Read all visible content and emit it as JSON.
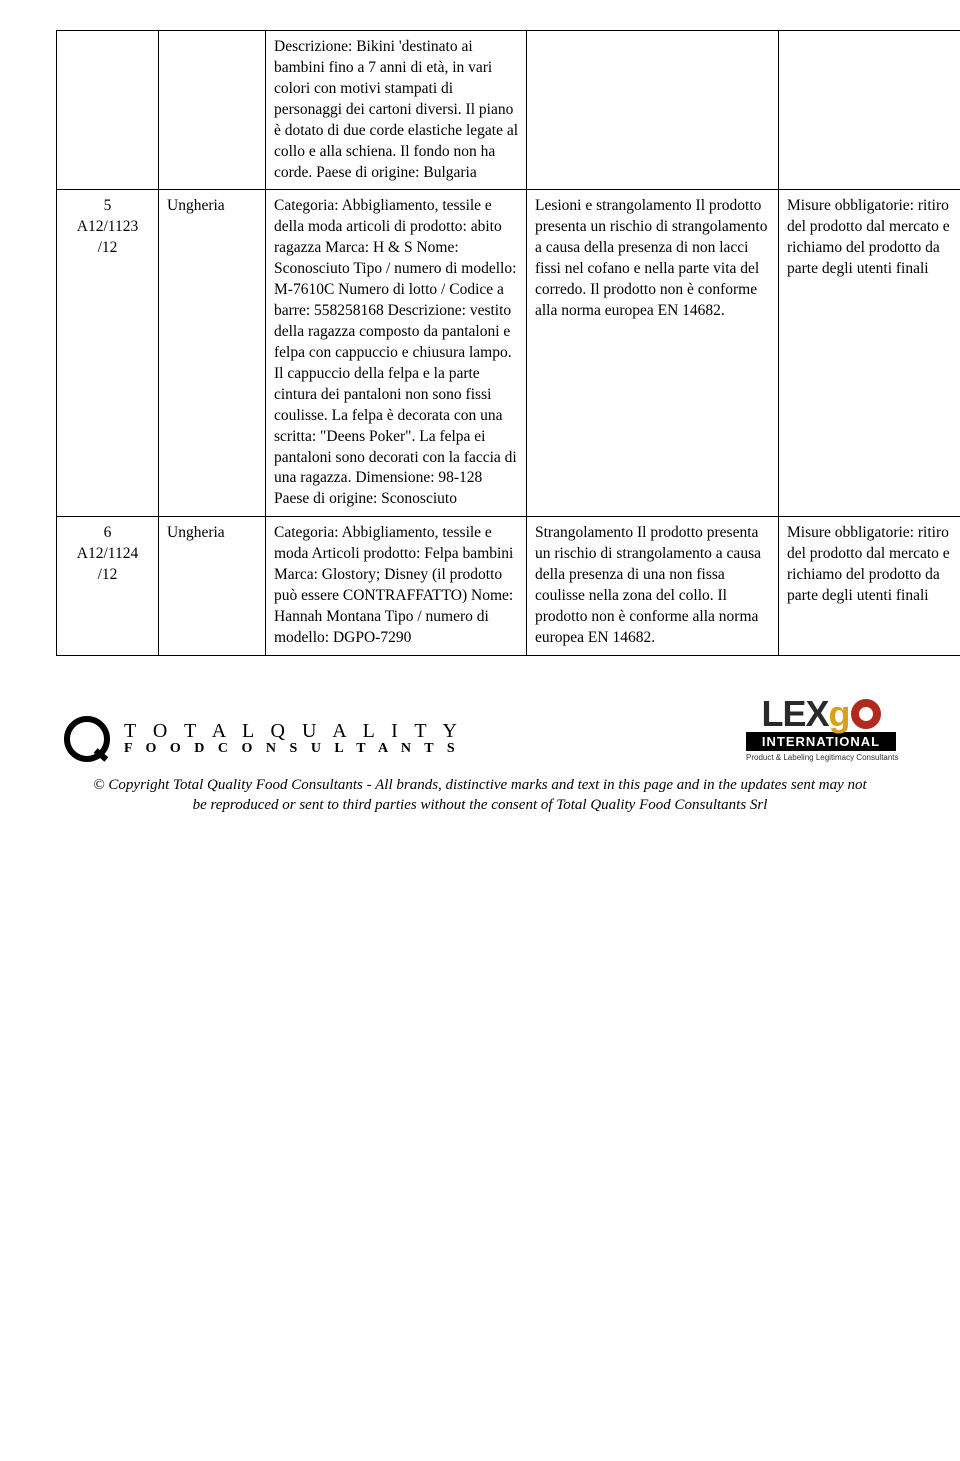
{
  "row0": {
    "desc": "Descrizione: Bikini 'destinato ai bambini fino a 7 anni di età, in vari colori con motivi stampati di personaggi dei cartoni diversi. Il piano è dotato di due corde elastiche legate al collo e alla schiena. Il fondo non ha corde. Paese di origine: Bulgaria"
  },
  "row1": {
    "idx": "5",
    "code1": "A12/1123",
    "code2": "/12",
    "country": "Ungheria",
    "desc": "Categoria: Abbigliamento, tessile e della moda articoli di prodotto: abito ragazza Marca: H & S Nome: Sconosciuto Tipo / numero di modello: M-7610C Numero di lotto / Codice a barre: 558258168 Descrizione: vestito della ragazza composto da pantaloni e felpa con cappuccio e chiusura lampo. Il cappuccio della felpa e la parte cintura dei pantaloni non sono fissi coulisse. La felpa è decorata con una scritta: \"Deens Poker\". La felpa ei pantaloni sono decorati con la faccia di una ragazza. Dimensione: 98-128 Paese di origine: Sconosciuto",
    "risk": "Lesioni e strangolamento Il prodotto presenta un rischio di strangolamento a causa della presenza di non lacci fissi nel cofano e nella parte vita del corredo. Il prodotto non è conforme alla norma europea EN 14682.",
    "measure": "Misure obbligatorie: ritiro del prodotto dal mercato e richiamo del prodotto da parte degli utenti finali"
  },
  "row2": {
    "idx": "6",
    "code1": "A12/1124",
    "code2": "/12",
    "country": "Ungheria",
    "desc": "Categoria: Abbigliamento, tessile e moda Articoli prodotto: Felpa bambini Marca: Glostory; Disney (il prodotto può essere CONTRAFFATTO) Nome: Hannah Montana Tipo / numero di modello: DGPO-7290",
    "risk": "Strangolamento Il prodotto presenta un rischio di strangolamento a causa della presenza di una non fissa coulisse nella zona del collo. Il prodotto non è conforme alla norma europea EN 14682.",
    "measure": "Misure obbligatorie: ritiro del prodotto dal mercato e richiamo del prodotto da parte degli utenti finali"
  },
  "footer": {
    "brand_line1": "T O T A L   Q U A L I T Y",
    "brand_line2": "F O O D   C O N S U L T A N T S",
    "lex": "LEX",
    "go_g": "g",
    "intl": "INTERNATIONAL",
    "intl_sub": "Product & Labeling Legitimacy Consultants",
    "copyright1": "© Copyright Total Quality Food Consultants - All brands, distinctive marks and text in this page and in the updates sent may not",
    "copyright2": "be reproduced or sent to third parties without the consent of Total Quality Food Consultants Srl"
  }
}
